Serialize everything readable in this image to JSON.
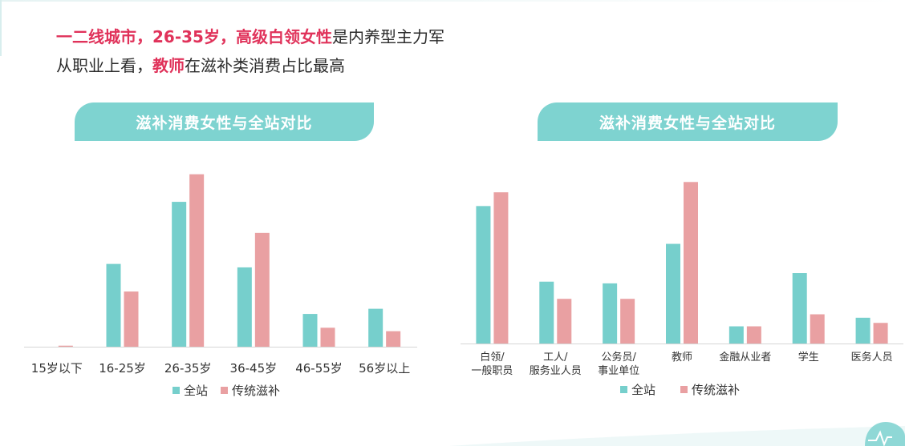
{
  "headline": {
    "line1_parts": [
      {
        "text": "一二线城市，26-35岁，高级白领女性",
        "highlight": true
      },
      {
        "text": "是内养型主力军",
        "highlight": false
      }
    ],
    "line2_parts": [
      {
        "text": "从职业上看，",
        "highlight": false
      },
      {
        "text": "教师",
        "highlight": true
      },
      {
        "text": "在滋补类消费占比最高",
        "highlight": false
      }
    ]
  },
  "colors": {
    "site": "#76cfcc",
    "tonic": "#e9a0a2",
    "highlight": "#e0325a",
    "banner": "#7ed3d0"
  },
  "chart_data": [
    {
      "type": "bar",
      "title": "滋补消费女性与全站对比",
      "categories": [
        "15岁以下",
        "16-25岁",
        "26-35岁",
        "36-45岁",
        "46-55岁",
        "56岁以上"
      ],
      "series": [
        {
          "name": "全站",
          "values": [
            0,
            24,
            42,
            23,
            9.5,
            11
          ]
        },
        {
          "name": "传统滋补",
          "values": [
            0.3,
            16,
            50,
            33,
            5.5,
            4.5
          ]
        }
      ],
      "ylim": [
        0,
        52
      ],
      "grid": false,
      "legend": "bottom"
    },
    {
      "type": "bar",
      "title": "滋补消费女性与全站对比",
      "categories": [
        "白领/\n一般职员",
        "工人/\n服务业人员",
        "公务员/\n事业单位",
        "教师",
        "金融从业者",
        "学生",
        "医务人员"
      ],
      "series": [
        {
          "name": "全站",
          "values": [
            40,
            18,
            17.5,
            29,
            5,
            20.5,
            7.5
          ]
        },
        {
          "name": "传统滋补",
          "values": [
            44,
            13,
            13,
            47,
            5,
            8.5,
            6
          ]
        }
      ],
      "ylim": [
        0,
        48
      ],
      "grid": false,
      "legend": "bottom"
    }
  ]
}
